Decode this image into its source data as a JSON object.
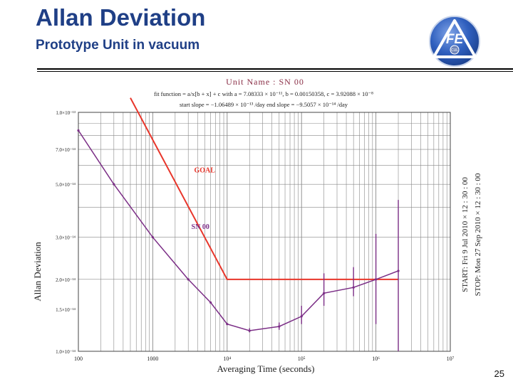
{
  "slide": {
    "title": "Allan Deviation",
    "subtitle": "Prototype Unit in vacuum",
    "page_number": "25"
  },
  "logo": {
    "text": "FE",
    "seal_text": "CUL",
    "icon": "triangle-emblem-icon"
  },
  "colors": {
    "title": "#1f3f86",
    "goal": "#e8362b",
    "sn00": "#7b2e86",
    "header_text": "#8a2e46",
    "grid": "#888888"
  },
  "chart_data": {
    "type": "line",
    "scale": "log-log",
    "header": {
      "line1": "Unit  Name :   SN 00",
      "line2": "fit function = a/x[b + x] + c with a = 7.08333 × 10⁻¹¹, b = 0.00150358, c = 3.92088 × 10⁻⁸",
      "line3": "start slope = −1.06489 × 10⁻¹³ /day         end slope = −9.5057 × 10⁻¹⁴ /day"
    },
    "xlabel": "Averaging Time (seconds)",
    "ylabel": "Allan Deviation",
    "xlim": [
      100,
      10000000
    ],
    "ylim": [
      1e-14,
      1e-13
    ],
    "x_ticks": [
      {
        "value": 100,
        "label": "100"
      },
      {
        "value": 1000,
        "label": "1000"
      },
      {
        "value": 10000,
        "label": "10⁴"
      },
      {
        "value": 100000,
        "label": "10⁵"
      },
      {
        "value": 1000000,
        "label": "10⁶"
      },
      {
        "value": 10000000,
        "label": "10⁷"
      }
    ],
    "y_ticks": [
      {
        "value": 1e-13,
        "label": "1.0×10⁻¹³"
      },
      {
        "value": 7e-14,
        "label": "7.0×10⁻¹⁴"
      },
      {
        "value": 5e-14,
        "label": "5.0×10⁻¹⁴"
      },
      {
        "value": 3e-14,
        "label": "3.0×10⁻¹⁴"
      },
      {
        "value": 2e-14,
        "label": "2.0×10⁻¹⁴"
      },
      {
        "value": 1.5e-14,
        "label": "1.5×10⁻¹⁴"
      },
      {
        "value": 1e-14,
        "label": "1.0×10⁻¹⁴"
      }
    ],
    "grid": true,
    "legend": "none",
    "series": [
      {
        "name": "GOAL",
        "color": "#e8362b",
        "points": [
          [
            500,
            1.15e-13
          ],
          [
            10000,
            2e-14
          ],
          [
            2000000,
            2e-14
          ]
        ],
        "label_at": [
          3600,
          5.6e-14
        ]
      },
      {
        "name": "SN 00",
        "color": "#7b2e86",
        "points": [
          [
            100,
            8.4e-14
          ],
          [
            300,
            5e-14
          ],
          [
            1000,
            3e-14
          ],
          [
            3000,
            2e-14
          ],
          [
            6000,
            1.6e-14
          ],
          [
            10000,
            1.3e-14
          ],
          [
            20000,
            1.22e-14
          ],
          [
            50000,
            1.27e-14
          ],
          [
            100000,
            1.4e-14
          ],
          [
            200000,
            1.75e-14
          ],
          [
            500000,
            1.85e-14
          ],
          [
            1000000,
            2e-14
          ],
          [
            2000000,
            2.17e-14
          ]
        ],
        "label_at": [
          3300,
          3.25e-14
        ]
      }
    ],
    "error_bars": [
      {
        "x": 20000,
        "low": 1.2e-14,
        "high": 1.25e-14
      },
      {
        "x": 50000,
        "low": 1.23e-14,
        "high": 1.32e-14
      },
      {
        "x": 100000,
        "low": 1.3e-14,
        "high": 1.55e-14
      },
      {
        "x": 200000,
        "low": 1.55e-14,
        "high": 2.12e-14
      },
      {
        "x": 500000,
        "low": 1.7e-14,
        "high": 2.25e-14
      },
      {
        "x": 1000000,
        "low": 1.3e-14,
        "high": 3.1e-14
      },
      {
        "x": 2000000,
        "low": 1e-14,
        "high": 4.3e-14
      }
    ],
    "side_annotation": {
      "start": "START:  Fri 9 Jul 2010 × 12 : 30 : 00",
      "stop": "STOP:   Mon 27 Sep 2010 × 12 : 30 : 00"
    }
  }
}
